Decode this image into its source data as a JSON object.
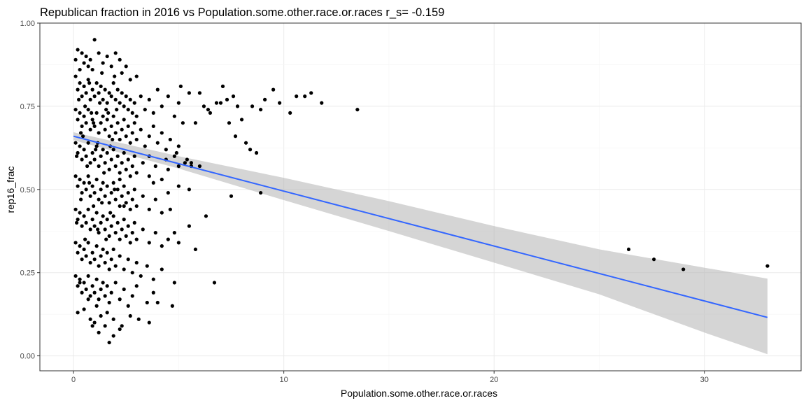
{
  "chart_data": {
    "type": "scatter",
    "title": "Republican fraction in 2016 vs Population.some.other.race.or.races  r_s= -0.159",
    "xlabel": "Population.some.other.race.or.races",
    "ylabel": "rep16_frac",
    "xlim": [
      -1.6,
      34.6
    ],
    "ylim": [
      -0.045,
      1.0
    ],
    "x_ticks": [
      0,
      10,
      20,
      30
    ],
    "x_tick_labels": [
      "0",
      "10",
      "20",
      "30"
    ],
    "y_ticks": [
      0.0,
      0.25,
      0.5,
      0.75,
      1.0
    ],
    "y_tick_labels": [
      "0.00",
      "0.25",
      "0.50",
      "0.75",
      "1.00"
    ],
    "grid": true,
    "legend": "none",
    "colors": {
      "points": "#000000",
      "fit_line": "#3366ff",
      "ribbon": "#b3b3b3"
    },
    "fit": {
      "method": "linear",
      "x_range": [
        0,
        33
      ],
      "intercept": 0.66,
      "slope": -0.0165,
      "ci": {
        "x": [
          0,
          5,
          10,
          15,
          20,
          25,
          30,
          33
        ],
        "lower": [
          0.648,
          0.563,
          0.468,
          0.375,
          0.28,
          0.185,
          0.07,
          0.005
        ],
        "upper": [
          0.672,
          0.6,
          0.535,
          0.465,
          0.39,
          0.32,
          0.265,
          0.232
        ]
      }
    },
    "points": [
      [
        0.1,
        0.89
      ],
      [
        0.2,
        0.92
      ],
      [
        0.3,
        0.86
      ],
      [
        0.4,
        0.91
      ],
      [
        0.5,
        0.88
      ],
      [
        0.6,
        0.9
      ],
      [
        0.7,
        0.87
      ],
      [
        0.8,
        0.89
      ],
      [
        0.9,
        0.86
      ],
      [
        1.0,
        0.95
      ],
      [
        1.2,
        0.91
      ],
      [
        1.4,
        0.88
      ],
      [
        1.6,
        0.9
      ],
      [
        1.8,
        0.87
      ],
      [
        2.0,
        0.91
      ],
      [
        2.2,
        0.89
      ],
      [
        2.3,
        0.85
      ],
      [
        2.5,
        0.87
      ],
      [
        2.7,
        0.83
      ],
      [
        3.0,
        0.84
      ],
      [
        0.1,
        0.84
      ],
      [
        0.2,
        0.8
      ],
      [
        0.3,
        0.82
      ],
      [
        0.4,
        0.78
      ],
      [
        0.5,
        0.81
      ],
      [
        0.6,
        0.79
      ],
      [
        0.7,
        0.83
      ],
      [
        0.8,
        0.77
      ],
      [
        0.9,
        0.8
      ],
      [
        1.0,
        0.78
      ],
      [
        1.1,
        0.82
      ],
      [
        1.2,
        0.79
      ],
      [
        1.3,
        0.81
      ],
      [
        1.4,
        0.77
      ],
      [
        1.5,
        0.8
      ],
      [
        1.6,
        0.76
      ],
      [
        1.7,
        0.79
      ],
      [
        1.8,
        0.78
      ],
      [
        1.9,
        0.82
      ],
      [
        2.0,
        0.77
      ],
      [
        2.1,
        0.8
      ],
      [
        2.2,
        0.76
      ],
      [
        2.3,
        0.79
      ],
      [
        2.4,
        0.75
      ],
      [
        2.5,
        0.78
      ],
      [
        2.6,
        0.74
      ],
      [
        2.7,
        0.77
      ],
      [
        2.8,
        0.73
      ],
      [
        2.9,
        0.76
      ],
      [
        3.0,
        0.72
      ],
      [
        3.2,
        0.78
      ],
      [
        3.4,
        0.74
      ],
      [
        3.6,
        0.77
      ],
      [
        3.8,
        0.73
      ],
      [
        4.0,
        0.8
      ],
      [
        4.2,
        0.75
      ],
      [
        4.5,
        0.78
      ],
      [
        4.8,
        0.72
      ],
      [
        5.0,
        0.76
      ],
      [
        5.2,
        0.7
      ],
      [
        0.1,
        0.74
      ],
      [
        0.2,
        0.71
      ],
      [
        0.3,
        0.73
      ],
      [
        0.4,
        0.69
      ],
      [
        0.5,
        0.72
      ],
      [
        0.6,
        0.7
      ],
      [
        0.7,
        0.74
      ],
      [
        0.8,
        0.68
      ],
      [
        0.9,
        0.71
      ],
      [
        1.0,
        0.69
      ],
      [
        1.1,
        0.73
      ],
      [
        1.2,
        0.67
      ],
      [
        1.3,
        0.7
      ],
      [
        1.4,
        0.72
      ],
      [
        1.5,
        0.68
      ],
      [
        1.6,
        0.71
      ],
      [
        1.7,
        0.66
      ],
      [
        1.8,
        0.69
      ],
      [
        1.9,
        0.72
      ],
      [
        2.0,
        0.67
      ],
      [
        2.1,
        0.7
      ],
      [
        2.2,
        0.65
      ],
      [
        2.3,
        0.68
      ],
      [
        2.4,
        0.71
      ],
      [
        2.5,
        0.66
      ],
      [
        2.6,
        0.69
      ],
      [
        2.7,
        0.64
      ],
      [
        2.8,
        0.67
      ],
      [
        2.9,
        0.7
      ],
      [
        3.0,
        0.65
      ],
      [
        3.2,
        0.68
      ],
      [
        3.4,
        0.63
      ],
      [
        3.6,
        0.66
      ],
      [
        3.8,
        0.69
      ],
      [
        4.0,
        0.64
      ],
      [
        4.2,
        0.67
      ],
      [
        4.4,
        0.62
      ],
      [
        4.6,
        0.65
      ],
      [
        4.8,
        0.6
      ],
      [
        5.0,
        0.63
      ],
      [
        0.1,
        0.64
      ],
      [
        0.2,
        0.61
      ],
      [
        0.3,
        0.63
      ],
      [
        0.4,
        0.59
      ],
      [
        0.5,
        0.62
      ],
      [
        0.6,
        0.6
      ],
      [
        0.7,
        0.64
      ],
      [
        0.8,
        0.58
      ],
      [
        0.9,
        0.61
      ],
      [
        1.0,
        0.59
      ],
      [
        1.1,
        0.63
      ],
      [
        1.2,
        0.57
      ],
      [
        1.3,
        0.6
      ],
      [
        1.4,
        0.62
      ],
      [
        1.5,
        0.58
      ],
      [
        1.6,
        0.61
      ],
      [
        1.7,
        0.56
      ],
      [
        1.8,
        0.59
      ],
      [
        1.9,
        0.62
      ],
      [
        2.0,
        0.57
      ],
      [
        2.1,
        0.6
      ],
      [
        2.2,
        0.55
      ],
      [
        2.3,
        0.58
      ],
      [
        2.4,
        0.61
      ],
      [
        2.5,
        0.56
      ],
      [
        2.6,
        0.59
      ],
      [
        2.7,
        0.54
      ],
      [
        2.8,
        0.57
      ],
      [
        2.9,
        0.6
      ],
      [
        3.0,
        0.55
      ],
      [
        3.3,
        0.58
      ],
      [
        3.6,
        0.54
      ],
      [
        3.9,
        0.57
      ],
      [
        4.2,
        0.53
      ],
      [
        4.5,
        0.56
      ],
      [
        5.0,
        0.57
      ],
      [
        5.3,
        0.58
      ],
      [
        5.6,
        0.57
      ],
      [
        6.0,
        0.57
      ],
      [
        4.4,
        0.59
      ],
      [
        0.1,
        0.54
      ],
      [
        0.2,
        0.51
      ],
      [
        0.3,
        0.53
      ],
      [
        0.4,
        0.49
      ],
      [
        0.5,
        0.52
      ],
      [
        0.6,
        0.5
      ],
      [
        0.7,
        0.54
      ],
      [
        0.8,
        0.48
      ],
      [
        0.9,
        0.51
      ],
      [
        1.0,
        0.49
      ],
      [
        1.1,
        0.53
      ],
      [
        1.2,
        0.47
      ],
      [
        1.3,
        0.5
      ],
      [
        1.4,
        0.52
      ],
      [
        1.5,
        0.48
      ],
      [
        1.6,
        0.51
      ],
      [
        1.7,
        0.46
      ],
      [
        1.8,
        0.49
      ],
      [
        1.9,
        0.52
      ],
      [
        2.0,
        0.47
      ],
      [
        2.1,
        0.5
      ],
      [
        2.2,
        0.45
      ],
      [
        2.3,
        0.48
      ],
      [
        2.4,
        0.51
      ],
      [
        2.5,
        0.46
      ],
      [
        2.6,
        0.49
      ],
      [
        2.7,
        0.44
      ],
      [
        2.8,
        0.47
      ],
      [
        2.9,
        0.5
      ],
      [
        3.0,
        0.45
      ],
      [
        3.3,
        0.48
      ],
      [
        3.6,
        0.44
      ],
      [
        3.9,
        0.47
      ],
      [
        4.2,
        0.43
      ],
      [
        4.5,
        0.49
      ],
      [
        5.0,
        0.51
      ],
      [
        5.5,
        0.5
      ],
      [
        4.6,
        0.44
      ],
      [
        3.8,
        0.52
      ],
      [
        2.2,
        0.53
      ],
      [
        0.1,
        0.44
      ],
      [
        0.2,
        0.41
      ],
      [
        0.3,
        0.43
      ],
      [
        0.4,
        0.39
      ],
      [
        0.5,
        0.42
      ],
      [
        0.6,
        0.4
      ],
      [
        0.7,
        0.44
      ],
      [
        0.8,
        0.38
      ],
      [
        0.9,
        0.41
      ],
      [
        1.0,
        0.39
      ],
      [
        1.1,
        0.43
      ],
      [
        1.2,
        0.37
      ],
      [
        1.3,
        0.4
      ],
      [
        1.4,
        0.42
      ],
      [
        1.5,
        0.38
      ],
      [
        1.6,
        0.41
      ],
      [
        1.7,
        0.36
      ],
      [
        1.8,
        0.39
      ],
      [
        1.9,
        0.42
      ],
      [
        2.0,
        0.37
      ],
      [
        2.1,
        0.4
      ],
      [
        2.2,
        0.35
      ],
      [
        2.3,
        0.38
      ],
      [
        2.4,
        0.41
      ],
      [
        2.5,
        0.36
      ],
      [
        2.6,
        0.39
      ],
      [
        2.7,
        0.34
      ],
      [
        2.8,
        0.37
      ],
      [
        2.9,
        0.4
      ],
      [
        3.0,
        0.35
      ],
      [
        3.3,
        0.38
      ],
      [
        3.6,
        0.34
      ],
      [
        3.9,
        0.37
      ],
      [
        4.2,
        0.33
      ],
      [
        4.5,
        0.35
      ],
      [
        4.8,
        0.37
      ],
      [
        5.0,
        0.34
      ],
      [
        5.5,
        0.39
      ],
      [
        6.3,
        0.42
      ],
      [
        2.4,
        0.45
      ],
      [
        0.1,
        0.34
      ],
      [
        0.2,
        0.31
      ],
      [
        0.3,
        0.33
      ],
      [
        0.4,
        0.29
      ],
      [
        0.5,
        0.32
      ],
      [
        0.6,
        0.3
      ],
      [
        0.7,
        0.34
      ],
      [
        0.8,
        0.28
      ],
      [
        0.9,
        0.31
      ],
      [
        1.0,
        0.29
      ],
      [
        1.1,
        0.33
      ],
      [
        1.2,
        0.27
      ],
      [
        1.3,
        0.3
      ],
      [
        1.4,
        0.32
      ],
      [
        1.5,
        0.28
      ],
      [
        1.6,
        0.31
      ],
      [
        1.7,
        0.26
      ],
      [
        1.8,
        0.29
      ],
      [
        1.9,
        0.32
      ],
      [
        2.0,
        0.27
      ],
      [
        2.2,
        0.3
      ],
      [
        2.4,
        0.26
      ],
      [
        2.6,
        0.29
      ],
      [
        2.8,
        0.25
      ],
      [
        3.0,
        0.28
      ],
      [
        3.2,
        0.24
      ],
      [
        3.5,
        0.27
      ],
      [
        3.8,
        0.23
      ],
      [
        4.2,
        0.26
      ],
      [
        5.8,
        0.32
      ],
      [
        0.1,
        0.24
      ],
      [
        0.2,
        0.21
      ],
      [
        0.3,
        0.23
      ],
      [
        0.4,
        0.19
      ],
      [
        0.5,
        0.22
      ],
      [
        0.6,
        0.2
      ],
      [
        0.7,
        0.24
      ],
      [
        0.8,
        0.18
      ],
      [
        0.9,
        0.21
      ],
      [
        1.0,
        0.19
      ],
      [
        1.1,
        0.23
      ],
      [
        1.2,
        0.17
      ],
      [
        1.3,
        0.2
      ],
      [
        1.4,
        0.22
      ],
      [
        1.5,
        0.18
      ],
      [
        1.6,
        0.21
      ],
      [
        1.7,
        0.16
      ],
      [
        1.8,
        0.19
      ],
      [
        2.0,
        0.22
      ],
      [
        2.2,
        0.17
      ],
      [
        2.4,
        0.2
      ],
      [
        2.6,
        0.15
      ],
      [
        2.8,
        0.18
      ],
      [
        3.0,
        0.21
      ],
      [
        3.5,
        0.16
      ],
      [
        3.8,
        0.19
      ],
      [
        4.0,
        0.16
      ],
      [
        4.8,
        0.22
      ],
      [
        4.7,
        0.15
      ],
      [
        6.7,
        0.22
      ],
      [
        0.2,
        0.13
      ],
      [
        0.5,
        0.14
      ],
      [
        0.8,
        0.11
      ],
      [
        1.0,
        0.1
      ],
      [
        1.3,
        0.12
      ],
      [
        1.5,
        0.09
      ],
      [
        1.6,
        0.13
      ],
      [
        1.9,
        0.11
      ],
      [
        2.2,
        0.08
      ],
      [
        2.7,
        0.12
      ],
      [
        3.1,
        0.11
      ],
      [
        3.6,
        0.1
      ],
      [
        1.2,
        0.07
      ],
      [
        1.9,
        0.06
      ],
      [
        1.7,
        0.04
      ],
      [
        2.3,
        0.09
      ],
      [
        0.3,
        0.22
      ],
      [
        0.7,
        0.17
      ],
      [
        1.1,
        0.15
      ],
      [
        0.9,
        0.09
      ],
      [
        5.1,
        0.81
      ],
      [
        5.5,
        0.79
      ],
      [
        6.0,
        0.79
      ],
      [
        6.2,
        0.75
      ],
      [
        6.5,
        0.73
      ],
      [
        6.8,
        0.76
      ],
      [
        7.0,
        0.76
      ],
      [
        7.1,
        0.81
      ],
      [
        7.3,
        0.77
      ],
      [
        7.6,
        0.78
      ],
      [
        7.8,
        0.75
      ],
      [
        8.0,
        0.71
      ],
      [
        8.2,
        0.64
      ],
      [
        8.5,
        0.75
      ],
      [
        8.7,
        0.61
      ],
      [
        8.9,
        0.74
      ],
      [
        9.1,
        0.77
      ],
      [
        9.5,
        0.8
      ],
      [
        9.8,
        0.76
      ],
      [
        10.3,
        0.73
      ],
      [
        10.6,
        0.78
      ],
      [
        11.0,
        0.78
      ],
      [
        11.3,
        0.79
      ],
      [
        11.8,
        0.76
      ],
      [
        13.5,
        0.74
      ],
      [
        5.8,
        0.7
      ],
      [
        6.4,
        0.74
      ],
      [
        7.4,
        0.7
      ],
      [
        7.7,
        0.66
      ],
      [
        8.4,
        0.62
      ],
      [
        7.5,
        0.48
      ],
      [
        8.9,
        0.49
      ],
      [
        26.4,
        0.32
      ],
      [
        27.6,
        0.29
      ],
      [
        29.0,
        0.26
      ],
      [
        33.0,
        0.27
      ],
      [
        5.6,
        0.58
      ],
      [
        4.9,
        0.61
      ],
      [
        5.4,
        0.59
      ],
      [
        3.6,
        0.6
      ],
      [
        0.15,
        0.6
      ],
      [
        0.35,
        0.67
      ],
      [
        0.55,
        0.75
      ],
      [
        0.75,
        0.82
      ],
      [
        0.95,
        0.7
      ],
      [
        1.15,
        0.64
      ],
      [
        1.35,
        0.85
      ],
      [
        1.55,
        0.74
      ],
      [
        1.75,
        0.63
      ],
      [
        1.95,
        0.84
      ],
      [
        0.25,
        0.77
      ],
      [
        0.45,
        0.66
      ],
      [
        0.65,
        0.57
      ],
      [
        0.85,
        0.73
      ],
      [
        1.05,
        0.62
      ],
      [
        1.25,
        0.76
      ],
      [
        1.45,
        0.55
      ],
      [
        1.65,
        0.73
      ],
      [
        1.85,
        0.65
      ],
      [
        2.05,
        0.74
      ],
      [
        0.15,
        0.4
      ],
      [
        0.35,
        0.47
      ],
      [
        0.55,
        0.35
      ],
      [
        0.75,
        0.52
      ],
      [
        0.95,
        0.45
      ],
      [
        1.15,
        0.38
      ],
      [
        1.35,
        0.46
      ],
      [
        1.55,
        0.35
      ],
      [
        1.75,
        0.43
      ],
      [
        1.95,
        0.5
      ]
    ]
  }
}
